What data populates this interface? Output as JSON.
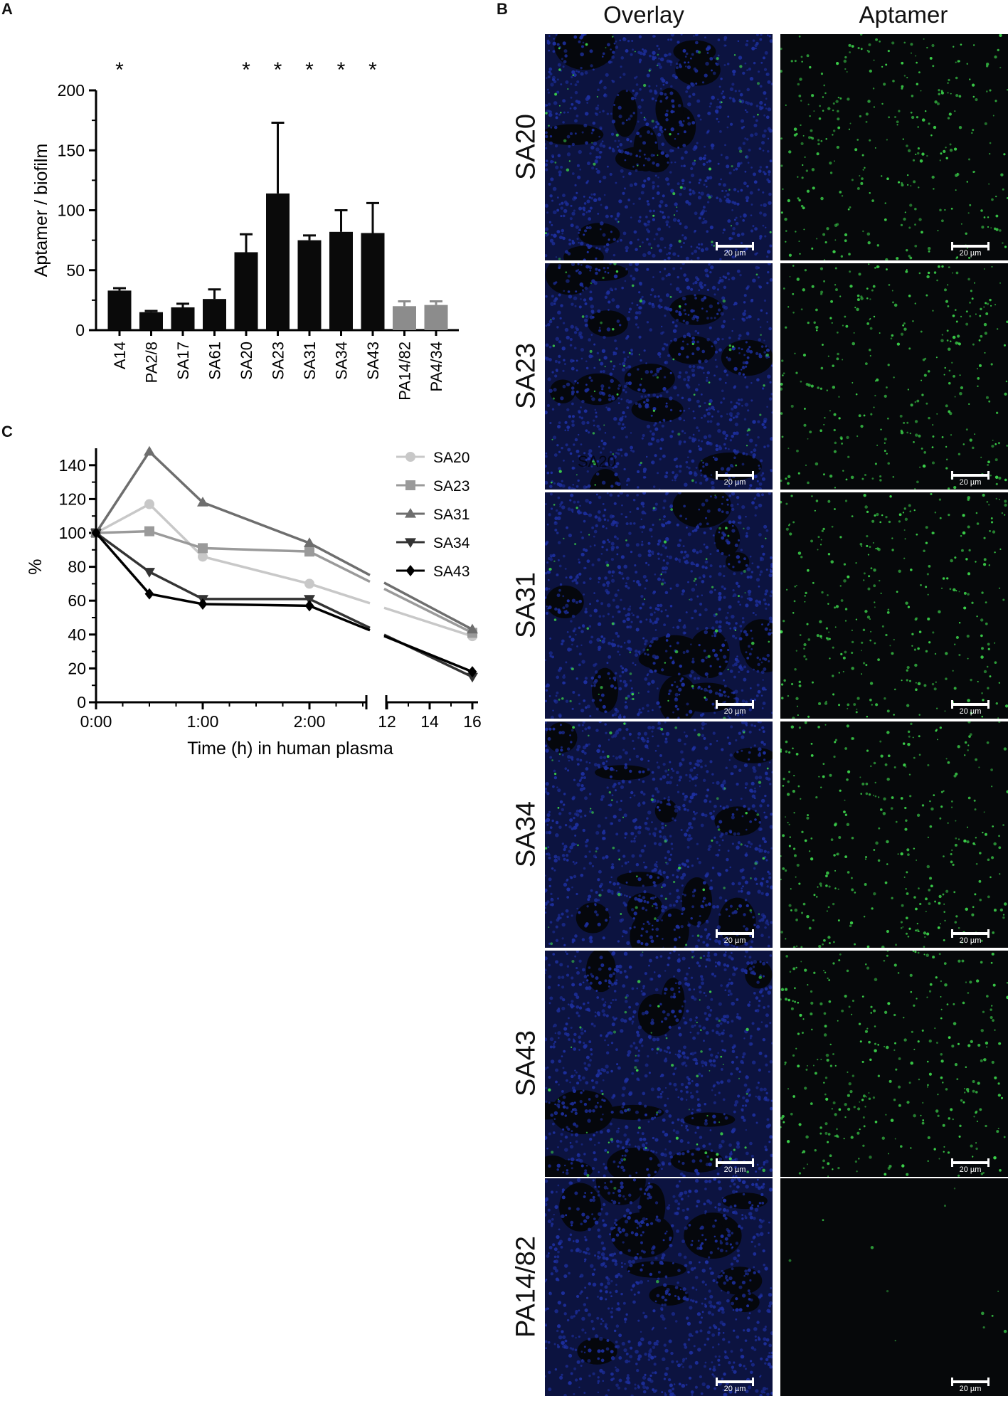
{
  "panels": {
    "a": "A",
    "b": "B",
    "c": "C"
  },
  "panel_b": {
    "column_headers": [
      "Overlay",
      "Aptamer"
    ],
    "rows": [
      "SA20",
      "SA23",
      "SA31",
      "SA34",
      "SA43",
      "PA14/82"
    ],
    "scale_label": "20 µm",
    "inset_text": "SA20",
    "colors": {
      "overlay": "#1d2f9e",
      "aptamer": "#3bd14a",
      "background": "#050806"
    }
  },
  "chart_data": [
    {
      "type": "bar",
      "panel": "A",
      "ylabel": "Aptamer / biofilm",
      "ylim": [
        0,
        200
      ],
      "yticks": [
        0,
        50,
        100,
        150,
        200
      ],
      "categories": [
        "A14",
        "PA2/8",
        "SA17",
        "SA61",
        "SA20",
        "SA23",
        "SA31",
        "SA34",
        "SA43",
        "PA14/82",
        "PA4/34"
      ],
      "values": [
        33,
        15,
        19,
        26,
        65,
        114,
        75,
        82,
        81,
        20,
        21
      ],
      "errors": [
        2,
        1,
        3,
        8,
        15,
        59,
        4,
        18,
        25,
        4,
        3
      ],
      "significance": [
        "*",
        "",
        "",
        "",
        "*",
        "*",
        "*",
        "*",
        "*",
        "",
        ""
      ],
      "bar_colors": [
        "#0a0a0a",
        "#0a0a0a",
        "#0a0a0a",
        "#0a0a0a",
        "#0a0a0a",
        "#0a0a0a",
        "#0a0a0a",
        "#0a0a0a",
        "#0a0a0a",
        "#8c8c8c",
        "#8c8c8c"
      ]
    },
    {
      "type": "line",
      "panel": "C",
      "xlabel": "Time (h) in human plasma",
      "ylabel": "%",
      "ylim": [
        0,
        150
      ],
      "yticks": [
        0,
        20,
        40,
        60,
        80,
        100,
        120,
        140
      ],
      "x_tick_labels_left": [
        "0:00",
        "1:00",
        "2:00"
      ],
      "x_tick_labels_right": [
        "12",
        "14",
        "16"
      ],
      "x_hours": [
        0,
        0.5,
        1,
        2,
        16
      ],
      "series": [
        {
          "name": "SA20",
          "values": [
            100,
            117,
            86,
            70,
            39
          ],
          "color": "#c8c8c8",
          "marker": "circle"
        },
        {
          "name": "SA23",
          "values": [
            100,
            101,
            91,
            89,
            41
          ],
          "color": "#9a9a9a",
          "marker": "square"
        },
        {
          "name": "SA31",
          "values": [
            100,
            148,
            118,
            94,
            43
          ],
          "color": "#6e6e6e",
          "marker": "triangle-up"
        },
        {
          "name": "SA34",
          "values": [
            100,
            77,
            61,
            61,
            15
          ],
          "color": "#333333",
          "marker": "triangle-down"
        },
        {
          "name": "SA43",
          "values": [
            100,
            64,
            58,
            57,
            18
          ],
          "color": "#000000",
          "marker": "diamond"
        }
      ]
    }
  ]
}
